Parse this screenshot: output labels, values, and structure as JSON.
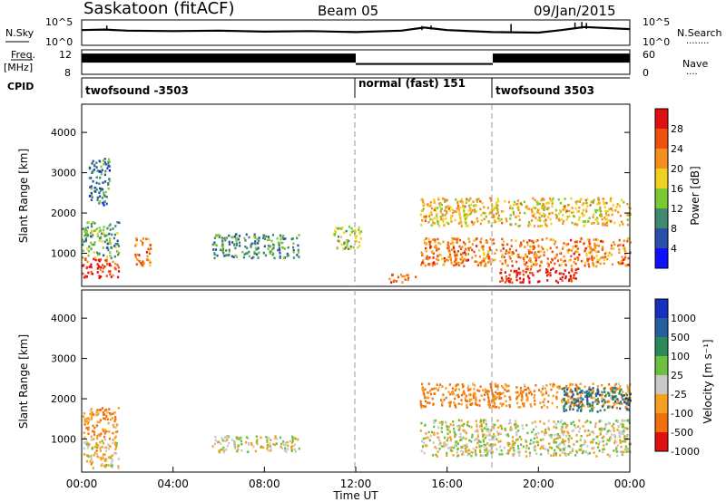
{
  "header": {
    "title": "Saskatoon (fitACF)",
    "beam": "Beam 05",
    "date": "09/Jan/2015"
  },
  "noise_panel": {
    "left_label": "N.Sky",
    "left_ticks": [
      "10^5",
      "10^0"
    ],
    "right_ticks": [
      "10^5",
      "10^0"
    ],
    "right_label": "N.Search",
    "right_legend": "........"
  },
  "freq_panel": {
    "left_label_1": "Freq.",
    "left_label_2": "[MHz]",
    "left_ticks": [
      "12",
      "8"
    ],
    "right_ticks": [
      "60",
      "0"
    ],
    "right_label": "Nave",
    "right_legend": "...."
  },
  "cpid_panel": {
    "label": "CPID",
    "segments": [
      {
        "text": "twofsound -3503",
        "start_hour": 0
      },
      {
        "text": "normal (fast) 151",
        "start_hour": 12
      },
      {
        "text": "twofsound 3503",
        "start_hour": 18
      }
    ]
  },
  "time_axis": {
    "label": "Time UT",
    "ticks": [
      "00:00",
      "04:00",
      "08:00",
      "12:00",
      "16:00",
      "20:00",
      "00:00"
    ]
  },
  "power_panel": {
    "ylabel": "Slant Range [km]",
    "yticks": [
      "1000",
      "2000",
      "3000",
      "4000"
    ],
    "colorbar_label": "Power [dB]",
    "colorbar_ticks": [
      "4",
      "8",
      "12",
      "16",
      "20",
      "24",
      "28"
    ],
    "colors": [
      "#1010ff",
      "#2a4fa8",
      "#3f8a6e",
      "#7cc832",
      "#f0d020",
      "#f59020",
      "#ee5010",
      "#e01010"
    ]
  },
  "velocity_panel": {
    "ylabel": "Slant Range [km]",
    "yticks": [
      "1000",
      "2000",
      "3000",
      "4000"
    ],
    "colorbar_label": "Velocity [m s⁻¹]",
    "colorbar_ticks": [
      "1000",
      "500",
      "100",
      "25",
      "-25",
      "-100",
      "-500",
      "-1000"
    ],
    "colors": [
      "#1830c0",
      "#2460a0",
      "#2a8a5a",
      "#6cc040",
      "#c8c8c8",
      "#f5a020",
      "#f07010",
      "#e01010"
    ]
  },
  "chart_data": [
    {
      "type": "line",
      "title": "Saskatoon (fitACF)",
      "ylabel": "N.Sky",
      "xlim": [
        0,
        24
      ],
      "note_series": [
        {
          "name": "N.Sky",
          "x": [
            0,
            1,
            2,
            4,
            6,
            8,
            10,
            12,
            14,
            15,
            16,
            18,
            20,
            21,
            22,
            24
          ],
          "y": [
            3.0,
            3.1,
            2.9,
            2.8,
            2.9,
            2.7,
            2.8,
            2.6,
            2.9,
            3.5,
            3.0,
            2.6,
            2.5,
            3.0,
            3.6,
            3.2
          ]
        }
      ]
    },
    {
      "type": "line",
      "ylabel": "Freq. [MHz]",
      "xlim": [
        0,
        24
      ],
      "series": [
        {
          "name": "Freq.",
          "x": [
            0,
            12,
            12,
            18,
            18,
            24
          ],
          "y": [
            11.5,
            11.5,
            10.3,
            10.3,
            11.5,
            11.5
          ]
        }
      ]
    },
    {
      "type": "heatmap",
      "title": "Power [dB]",
      "xlabel": "Time UT",
      "ylabel": "Slant Range [km]",
      "xlim": [
        0,
        24
      ],
      "ylim": [
        180,
        4700
      ],
      "clim": [
        0,
        30
      ],
      "regions": [
        {
          "t": [
            0.0,
            1.6
          ],
          "r": [
            400,
            900
          ],
          "value": 26
        },
        {
          "t": [
            0.0,
            1.6
          ],
          "r": [
            900,
            1800
          ],
          "value": 12
        },
        {
          "t": [
            0.3,
            1.2
          ],
          "r": [
            2200,
            3400
          ],
          "value": 8
        },
        {
          "t": [
            2.3,
            3.0
          ],
          "r": [
            700,
            1400
          ],
          "value": 22
        },
        {
          "t": [
            5.7,
            9.5
          ],
          "r": [
            900,
            1500
          ],
          "value": 10
        },
        {
          "t": [
            11.0,
            12.2
          ],
          "r": [
            1100,
            1700
          ],
          "value": 14
        },
        {
          "t": [
            13.4,
            14.6
          ],
          "r": [
            300,
            500
          ],
          "value": 24
        },
        {
          "t": [
            14.8,
            24.0
          ],
          "r": [
            700,
            1400
          ],
          "value": 22
        },
        {
          "t": [
            14.8,
            24.0
          ],
          "r": [
            1700,
            2400
          ],
          "value": 18
        },
        {
          "t": [
            18.2,
            21.8
          ],
          "r": [
            300,
            650
          ],
          "value": 28
        }
      ]
    },
    {
      "type": "heatmap",
      "title": "Velocity [m s⁻¹]",
      "xlabel": "Time UT",
      "ylabel": "Slant Range [km]",
      "xlim": [
        0,
        24
      ],
      "ylim": [
        180,
        4700
      ],
      "clim": [
        -1000,
        1000
      ],
      "regions": [
        {
          "t": [
            0.0,
            1.6
          ],
          "r": [
            300,
            1000
          ],
          "value": -25
        },
        {
          "t": [
            0.0,
            1.6
          ],
          "r": [
            1000,
            1800
          ],
          "value": -100
        },
        {
          "t": [
            5.7,
            9.5
          ],
          "r": [
            700,
            1100
          ],
          "value": 0
        },
        {
          "t": [
            14.8,
            24.0
          ],
          "r": [
            600,
            1500
          ],
          "value": 0
        },
        {
          "t": [
            14.8,
            24.0
          ],
          "r": [
            1800,
            2400
          ],
          "value": -100
        },
        {
          "t": [
            21.0,
            24.0
          ],
          "r": [
            1700,
            2300
          ],
          "value": 500
        }
      ]
    }
  ]
}
